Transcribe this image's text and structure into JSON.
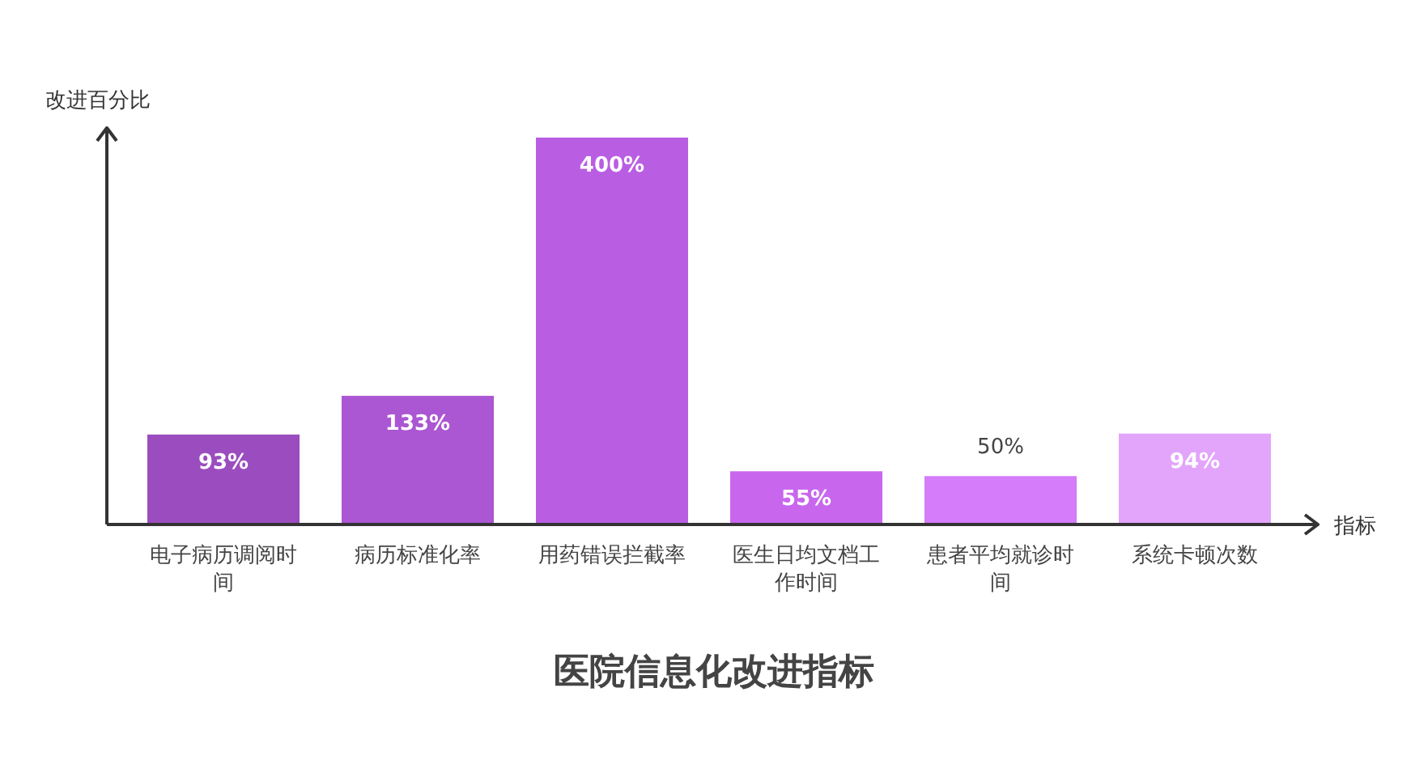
{
  "chart_data": {
    "type": "bar",
    "title": "医院信息化改进指标",
    "xlabel": "指标",
    "ylabel": "改进百分比",
    "categories": [
      "电子病历调阅时间",
      "病历标准化率",
      "用药错误拦截率",
      "医生日均文档工作时间",
      "患者平均就诊时间",
      "系统卡顿次数"
    ],
    "values": [
      93,
      133,
      400,
      55,
      50,
      94
    ],
    "value_labels": [
      "93%",
      "133%",
      "400%",
      "55%",
      "50%",
      "94%"
    ],
    "colors": [
      "#9b4dbf",
      "#ab56d2",
      "#b95ee3",
      "#c867ee",
      "#d47cf9",
      "#e2a5fb"
    ]
  }
}
